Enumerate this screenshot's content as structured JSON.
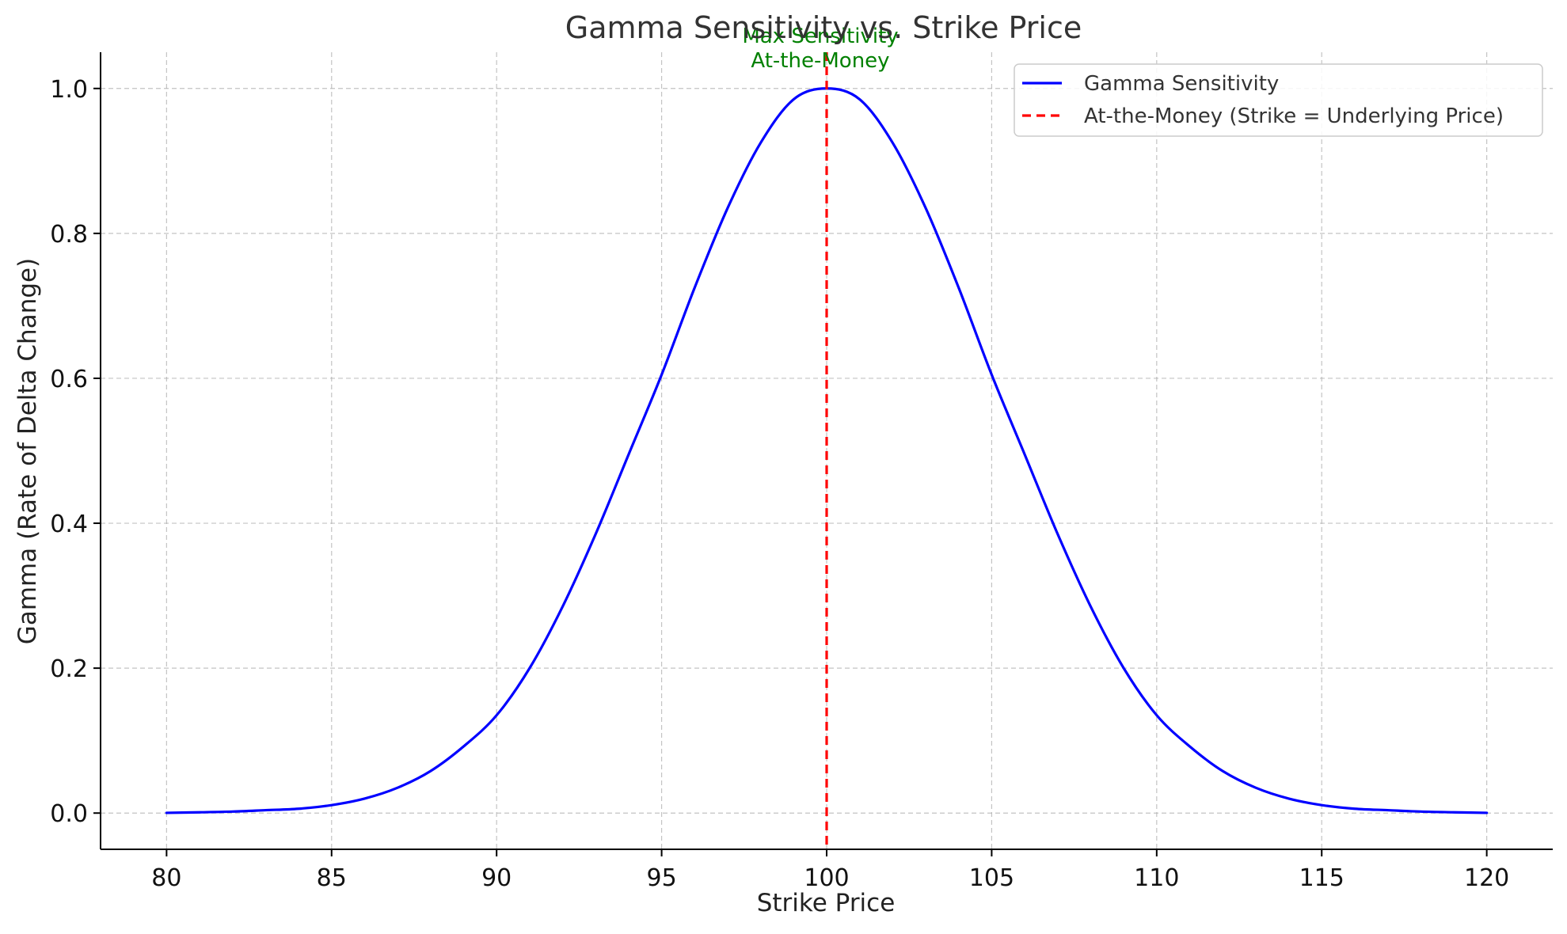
{
  "chart_data": {
    "type": "line",
    "title": "Gamma Sensitivity vs. Strike Price",
    "xlabel": "Strike Price",
    "ylabel": "Gamma (Rate of Delta Change)",
    "xlim": [
      78,
      122
    ],
    "ylim": [
      -0.05,
      1.05
    ],
    "x_ticks": [
      80,
      85,
      90,
      95,
      100,
      105,
      110,
      115,
      120
    ],
    "x_tick_labels": [
      "80",
      "85",
      "90",
      "95",
      "100",
      "105",
      "110",
      "115",
      "120"
    ],
    "y_ticks": [
      0.0,
      0.2,
      0.4,
      0.6,
      0.8,
      1.0
    ],
    "y_tick_labels": [
      "0.0",
      "0.2",
      "0.4",
      "0.6",
      "0.8",
      "1.0"
    ],
    "grid": true,
    "legend_position": "top-right",
    "series": [
      {
        "name": "Gamma Sensitivity",
        "color": "#0000ff",
        "style": "solid",
        "x": [
          80,
          81,
          82,
          83,
          84,
          85,
          86,
          87,
          88,
          89,
          90,
          91,
          92,
          93,
          94,
          95,
          96,
          97,
          98,
          99,
          100,
          101,
          102,
          103,
          104,
          105,
          106,
          107,
          108,
          109,
          110,
          111,
          112,
          113,
          114,
          115,
          116,
          117,
          118,
          119,
          120
        ],
        "y": [
          0.0003,
          0.0011,
          0.0021,
          0.004,
          0.006,
          0.011,
          0.02,
          0.035,
          0.058,
          0.092,
          0.135,
          0.2,
          0.285,
          0.385,
          0.495,
          0.605,
          0.725,
          0.835,
          0.925,
          0.985,
          1.0,
          0.985,
          0.925,
          0.835,
          0.725,
          0.605,
          0.495,
          0.385,
          0.285,
          0.2,
          0.135,
          0.092,
          0.058,
          0.035,
          0.02,
          0.011,
          0.006,
          0.004,
          0.0021,
          0.0011,
          0.0003
        ]
      }
    ],
    "vlines": [
      {
        "name": "At-the-Money (Strike = Underlying Price)",
        "x": 100,
        "color": "#ff0000",
        "style": "dashed"
      }
    ],
    "annotations": [
      {
        "lines": [
          "Max Sensitivity",
          "At-the-Money"
        ],
        "x": 100,
        "y": 1.0,
        "color": "#008000"
      }
    ]
  }
}
